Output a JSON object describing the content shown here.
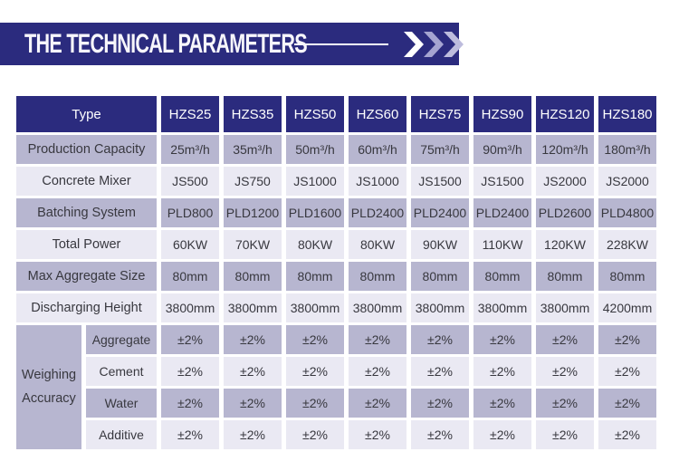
{
  "banner": {
    "title": "THE TECHNICAL PARAMETERS",
    "arrows_icon": "triple-chevron-right",
    "colors": {
      "background": "#2b2b7e",
      "line": "#ffffff",
      "chevron_1": "#ffffff",
      "chevron_2": "#a5a4d1",
      "chevron_3": "#bdbcdd"
    }
  },
  "table": {
    "header": {
      "type_label": "Type",
      "columns": [
        "HZS25",
        "HZS35",
        "HZS50",
        "HZS60",
        "HZS75",
        "HZS90",
        "HZS120",
        "HZS180"
      ]
    },
    "rows": [
      {
        "label": "Production Capacity",
        "values": [
          "25m³/h",
          "35m³/h",
          "50m³/h",
          "60m³/h",
          "75m³/h",
          "90m³/h",
          "120m³/h",
          "180m³/h"
        ]
      },
      {
        "label": "Concrete Mixer",
        "values": [
          "JS500",
          "JS750",
          "JS1000",
          "JS1000",
          "JS1500",
          "JS1500",
          "JS2000",
          "JS2000"
        ]
      },
      {
        "label": "Batching System",
        "values": [
          "PLD800",
          "PLD1200",
          "PLD1600",
          "PLD2400",
          "PLD2400",
          "PLD2400",
          "PLD2600",
          "PLD4800"
        ]
      },
      {
        "label": "Total Power",
        "values": [
          "60KW",
          "70KW",
          "80KW",
          "80KW",
          "90KW",
          "110KW",
          "120KW",
          "228KW"
        ]
      },
      {
        "label": "Max Aggregate Size",
        "values": [
          "80mm",
          "80mm",
          "80mm",
          "80mm",
          "80mm",
          "80mm",
          "80mm",
          "80mm"
        ]
      },
      {
        "label": "Discharging Height",
        "values": [
          "3800mm",
          "3800mm",
          "3800mm",
          "3800mm",
          "3800mm",
          "3800mm",
          "3800mm",
          "4200mm"
        ]
      }
    ],
    "weighing": {
      "label": "Weighing Accuracy",
      "sub_rows": [
        {
          "label": "Aggregate",
          "values": [
            "±2%",
            "±2%",
            "±2%",
            "±2%",
            "±2%",
            "±2%",
            "±2%",
            "±2%"
          ]
        },
        {
          "label": "Cement",
          "values": [
            "±2%",
            "±2%",
            "±2%",
            "±2%",
            "±2%",
            "±2%",
            "±2%",
            "±2%"
          ]
        },
        {
          "label": "Water",
          "values": [
            "±2%",
            "±2%",
            "±2%",
            "±2%",
            "±2%",
            "±2%",
            "±2%",
            "±2%"
          ]
        },
        {
          "label": "Additive",
          "values": [
            "±2%",
            "±2%",
            "±2%",
            "±2%",
            "±2%",
            "±2%",
            "±2%",
            "±2%"
          ]
        }
      ]
    },
    "colors": {
      "header_bg": "#2b2b7e",
      "header_text": "#ffffff",
      "row_dark": "#b7b6d0",
      "row_light": "#eae9f3",
      "cell_text": "#38383f"
    }
  }
}
